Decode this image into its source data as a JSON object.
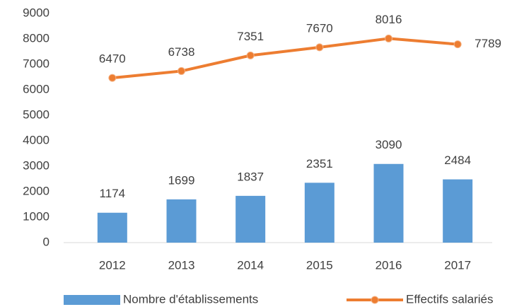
{
  "chart_data": {
    "type": "bar",
    "categories": [
      "2012",
      "2013",
      "2014",
      "2015",
      "2016",
      "2017"
    ],
    "series": [
      {
        "name": "Nombre d'établissements",
        "type": "bar",
        "color": "#5b9bd5",
        "values": [
          1174,
          1699,
          1837,
          2351,
          3090,
          2484
        ]
      },
      {
        "name": "Effectifs salariés",
        "type": "line",
        "color": "#ed7d31",
        "values": [
          6470,
          6738,
          7351,
          7670,
          8016,
          7789
        ]
      }
    ],
    "ylim": [
      0,
      9000
    ],
    "yticks": [
      0,
      1000,
      2000,
      3000,
      4000,
      5000,
      6000,
      7000,
      8000,
      9000
    ],
    "grid": false,
    "legend": "bottom"
  }
}
